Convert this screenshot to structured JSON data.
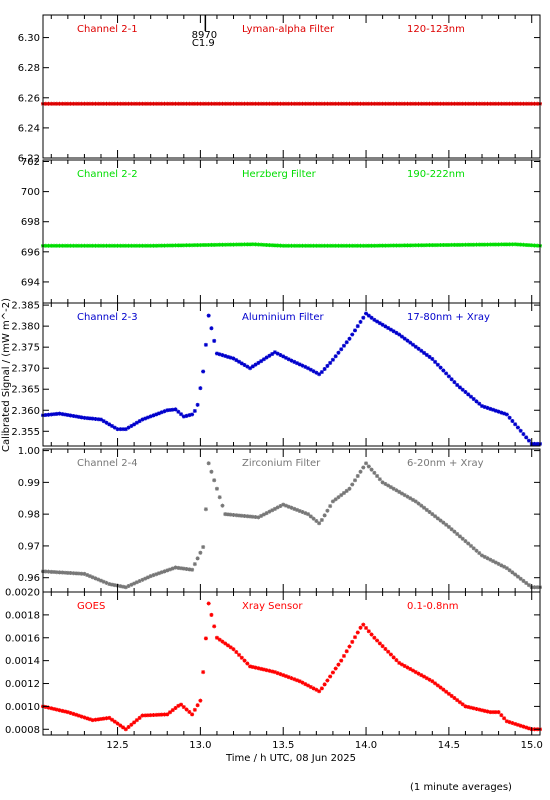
{
  "chart_data": {
    "type": "scatter",
    "shared_x_axis": {
      "label": "Time / h UTC, 08 Jun 2025",
      "range": [
        12.05,
        15.05
      ],
      "ticks": [
        12.5,
        13.0,
        13.5,
        14.0,
        14.5,
        15.0
      ],
      "tick_labels": [
        "12.5",
        "13.0",
        "13.5",
        "14.0",
        "14.5",
        "15.0"
      ]
    },
    "ylabel": "Calibrated Signal / (mW m^-2)",
    "footnote": "(1 minute averages)",
    "panels": [
      {
        "channel": "Channel 2-1",
        "filter": "Lyman-alpha Filter",
        "band": "120-123nm",
        "color": "#dd0000",
        "ylim": [
          6.22,
          6.315
        ],
        "yticks": [
          6.22,
          6.24,
          6.26,
          6.28,
          6.3
        ],
        "ytick_labels": [
          "6.22",
          "6.24",
          "6.26",
          "6.28",
          "6.30"
        ],
        "flare_marker": {
          "x": 13.03,
          "label_top": "8970",
          "label_bottom": "C1.9"
        },
        "points": [
          [
            12.05,
            6.256
          ],
          [
            15.05,
            6.256
          ]
        ]
      },
      {
        "channel": "Channel 2-2",
        "filter": "Herzberg Filter",
        "band": "190-222nm",
        "color": "#00dd00",
        "ylim": [
          692.6,
          702.1
        ],
        "yticks": [
          694,
          696,
          698,
          700,
          702
        ],
        "ytick_labels": [
          "694",
          "696",
          "698",
          "700",
          "702"
        ],
        "points": [
          [
            12.05,
            696.4
          ],
          [
            12.7,
            696.4
          ],
          [
            13.32,
            696.5
          ],
          [
            13.5,
            696.4
          ],
          [
            14.0,
            696.4
          ],
          [
            14.9,
            696.5
          ],
          [
            15.05,
            696.4
          ]
        ]
      },
      {
        "channel": "Channel 2-3",
        "filter": "Aluminium Filter",
        "band": "17-80nm + Xray",
        "color": "#0000cc",
        "ylim": [
          2.3515,
          2.3855
        ],
        "yticks": [
          2.355,
          2.36,
          2.365,
          2.37,
          2.375,
          2.38,
          2.385
        ],
        "ytick_labels": [
          "2.355",
          "2.360",
          "2.365",
          "2.370",
          "2.375",
          "2.380",
          "2.385"
        ],
        "points": [
          [
            12.05,
            2.3588
          ],
          [
            12.15,
            2.3592
          ],
          [
            12.3,
            2.3582
          ],
          [
            12.4,
            2.3578
          ],
          [
            12.5,
            2.3555
          ],
          [
            12.55,
            2.3555
          ],
          [
            12.65,
            2.3578
          ],
          [
            12.8,
            2.36
          ],
          [
            12.85,
            2.3602
          ],
          [
            12.9,
            2.3585
          ],
          [
            12.95,
            2.359
          ],
          [
            12.98,
            2.3605
          ],
          [
            13.02,
            2.37
          ],
          [
            13.05,
            2.3825
          ],
          [
            13.1,
            2.3735
          ],
          [
            13.2,
            2.3723
          ],
          [
            13.3,
            2.37
          ],
          [
            13.45,
            2.3738
          ],
          [
            13.55,
            2.3718
          ],
          [
            13.65,
            2.37
          ],
          [
            13.72,
            2.3685
          ],
          [
            13.8,
            2.372
          ],
          [
            13.9,
            2.377
          ],
          [
            14.0,
            2.383
          ],
          [
            14.05,
            2.3815
          ],
          [
            14.2,
            2.378
          ],
          [
            14.4,
            2.3722
          ],
          [
            14.55,
            2.366
          ],
          [
            14.7,
            2.361
          ],
          [
            14.85,
            2.359
          ],
          [
            15.0,
            2.352
          ]
        ]
      },
      {
        "channel": "Channel 2-4",
        "filter": "Zirconium Filter",
        "band": "6-20nm + Xray",
        "color": "#777777",
        "ylim": [
          0.9555,
          1.0005
        ],
        "yticks": [
          0.96,
          0.97,
          0.98,
          0.99,
          1.0
        ],
        "ytick_labels": [
          "0.96",
          "0.97",
          "0.98",
          "0.99",
          "1.00"
        ],
        "points": [
          [
            12.05,
            0.962
          ],
          [
            12.3,
            0.9612
          ],
          [
            12.45,
            0.958
          ],
          [
            12.55,
            0.957
          ],
          [
            12.7,
            0.9605
          ],
          [
            12.85,
            0.9632
          ],
          [
            12.95,
            0.9625
          ],
          [
            13.02,
            0.97
          ],
          [
            13.05,
            0.996
          ],
          [
            13.15,
            0.98
          ],
          [
            13.25,
            0.9795
          ],
          [
            13.35,
            0.979
          ],
          [
            13.5,
            0.983
          ],
          [
            13.65,
            0.98
          ],
          [
            13.72,
            0.977
          ],
          [
            13.8,
            0.984
          ],
          [
            13.9,
            0.988
          ],
          [
            14.0,
            0.996
          ],
          [
            14.1,
            0.99
          ],
          [
            14.3,
            0.984
          ],
          [
            14.5,
            0.976
          ],
          [
            14.7,
            0.967
          ],
          [
            14.85,
            0.963
          ],
          [
            15.0,
            0.957
          ]
        ]
      },
      {
        "channel": "GOES",
        "filter": "Xray Sensor",
        "band": "0.1-0.8nm",
        "color": "#ff0000",
        "ylim": [
          0.00075,
          0.002
        ],
        "yticks": [
          0.0008,
          0.001,
          0.0012,
          0.0014,
          0.0016,
          0.0018,
          0.002
        ],
        "ytick_labels": [
          "0.0008",
          "0.0010",
          "0.0012",
          "0.0014",
          "0.0016",
          "0.0018",
          "0.0020"
        ],
        "points": [
          [
            12.05,
            0.001
          ],
          [
            12.2,
            0.00095
          ],
          [
            12.35,
            0.00088
          ],
          [
            12.45,
            0.0009
          ],
          [
            12.55,
            0.0008
          ],
          [
            12.65,
            0.00092
          ],
          [
            12.8,
            0.00093
          ],
          [
            12.88,
            0.00102
          ],
          [
            12.95,
            0.00093
          ],
          [
            13.0,
            0.00105
          ],
          [
            13.02,
            0.00135
          ],
          [
            13.05,
            0.0019
          ],
          [
            13.1,
            0.0016
          ],
          [
            13.2,
            0.0015
          ],
          [
            13.3,
            0.00135
          ],
          [
            13.45,
            0.0013
          ],
          [
            13.6,
            0.00122
          ],
          [
            13.72,
            0.00113
          ],
          [
            13.85,
            0.0014
          ],
          [
            13.98,
            0.00172
          ],
          [
            14.05,
            0.0016
          ],
          [
            14.2,
            0.00138
          ],
          [
            14.4,
            0.00122
          ],
          [
            14.6,
            0.001
          ],
          [
            14.75,
            0.00095
          ],
          [
            14.8,
            0.00095
          ],
          [
            14.85,
            0.00087
          ],
          [
            15.0,
            0.0008
          ]
        ]
      }
    ]
  }
}
